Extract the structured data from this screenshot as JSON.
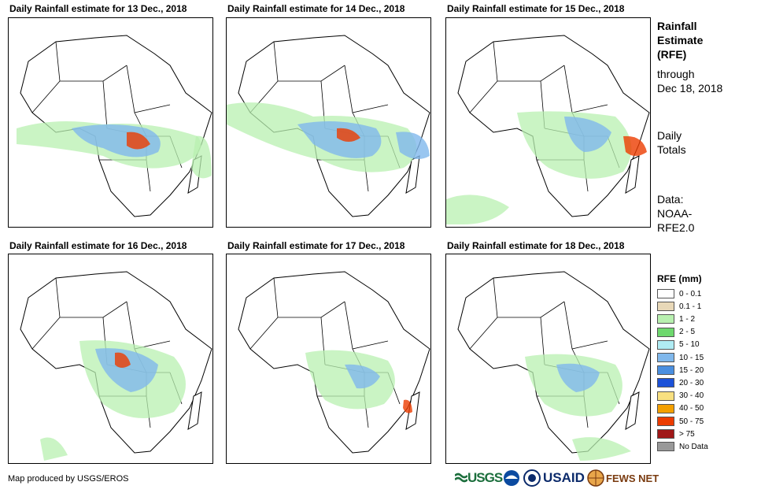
{
  "panels": [
    {
      "title": "Daily Rainfall estimate for 13 Dec., 2018"
    },
    {
      "title": "Daily Rainfall estimate for 14 Dec., 2018"
    },
    {
      "title": "Daily Rainfall estimate for 15 Dec., 2018"
    },
    {
      "title": "Daily Rainfall estimate for 16 Dec., 2018"
    },
    {
      "title": "Daily Rainfall estimate for 17 Dec., 2018"
    },
    {
      "title": "Daily Rainfall estimate for 18 Dec., 2018"
    }
  ],
  "info": {
    "line1": "Rainfall",
    "line2": "Estimate",
    "line3": "(RFE)",
    "line4": "through",
    "line5": "Dec 18, 2018",
    "line6": "Daily",
    "line7": "Totals",
    "line8": "Data:",
    "line9": "NOAA-",
    "line10": "RFE2.0"
  },
  "legend": {
    "title": "RFE (mm)",
    "items": [
      {
        "label": "0 - 0.1",
        "color": "#ffffff"
      },
      {
        "label": "0.1 - 1",
        "color": "#e8d8b8"
      },
      {
        "label": "1 - 2",
        "color": "#b8f0b0"
      },
      {
        "label": "2 - 5",
        "color": "#6ed86e"
      },
      {
        "label": "5 - 10",
        "color": "#b0ecf4"
      },
      {
        "label": "10 - 15",
        "color": "#80b8ec"
      },
      {
        "label": "15 - 20",
        "color": "#4a8fe0"
      },
      {
        "label": "20 - 30",
        "color": "#1c52d8"
      },
      {
        "label": "30 - 40",
        "color": "#f8e080"
      },
      {
        "label": "40 - 50",
        "color": "#f4a000"
      },
      {
        "label": "50 - 75",
        "color": "#ec3c00"
      },
      {
        "label": "> 75",
        "color": "#a01818"
      },
      {
        "label": "No Data",
        "color": "#999999"
      }
    ]
  },
  "credit": "Map produced by USGS/EROS",
  "logos": {
    "usgs": "USGS",
    "usaid": "USAID",
    "fews": "FEWS NET"
  }
}
